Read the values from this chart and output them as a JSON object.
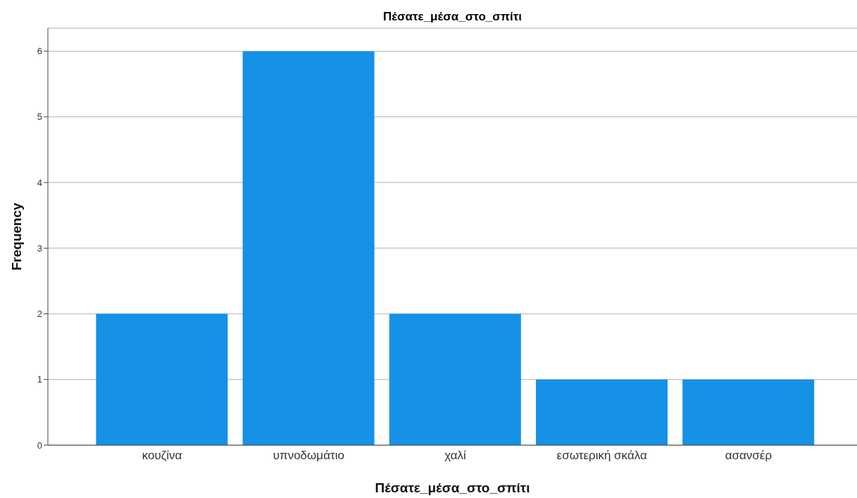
{
  "chart_data": {
    "type": "bar",
    "title": "Πέσατε_μέσα_στο_σπίτι",
    "xlabel": "Πέσατε_μέσα_στο_σπίτι",
    "ylabel": "Frequency",
    "categories": [
      "κουζίνα",
      "υπνοδωμάτιο",
      "χαλί",
      "εσωτερική σκάλα",
      "ασανσέρ"
    ],
    "values": [
      2,
      6,
      2,
      1,
      1
    ],
    "color": "#1591e6",
    "ylim": [
      0,
      6.35
    ],
    "yticks": [
      0,
      1,
      2,
      3,
      4,
      5,
      6
    ],
    "grid": "y"
  }
}
